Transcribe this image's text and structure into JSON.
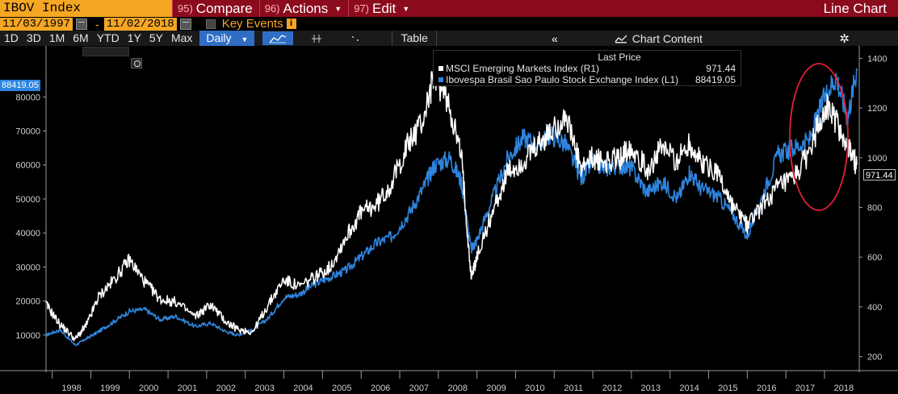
{
  "topbar": {
    "ticker": "IBOV Index",
    "commands": [
      {
        "num": "95)",
        "label": "Compare"
      },
      {
        "num": "96)",
        "label": "Actions"
      },
      {
        "num": "97)",
        "label": "Edit"
      }
    ],
    "chart_title": "Line Chart"
  },
  "datebar": {
    "start_date": "11/03/1997",
    "end_date": "11/02/2018",
    "separator": "-",
    "key_events_label": "Key Events",
    "info_glyph": "i"
  },
  "toolbar": {
    "ranges": [
      "1D",
      "3D",
      "1M",
      "6M",
      "YTD",
      "1Y",
      "5Y",
      "Max"
    ],
    "frequency": "Daily",
    "table_label": "Table",
    "collapse_glyph": "«",
    "chart_content_label": "Chart Content",
    "gear_glyph": "✲"
  },
  "legend": {
    "header": "Last Price",
    "items": [
      {
        "name": "MSCI Emerging Markets Index  (R1)",
        "value": "971.44",
        "color": "#ffffff"
      },
      {
        "name": "Ibovespa Brasil Sao Paulo Stock Exchange Index  (L1)",
        "value": "88419.05",
        "color": "#2e85df"
      }
    ]
  },
  "last_value_tags": {
    "left": "88419.05",
    "right": "971.44"
  },
  "icons": [
    "calendar-icon",
    "info-icon",
    "line-chart-icon",
    "crosshair-icon",
    "collapse-icon",
    "chart-content-icon",
    "gear-icon"
  ],
  "colors": {
    "topbar": "#8b0b1d",
    "accent_orange": "#f5a623",
    "series_blue": "#2e85df",
    "series_white": "#ffffff",
    "highlight_ellipse": "#e0203a"
  },
  "chart_data": {
    "type": "line",
    "x_ticks": [
      "1998",
      "1999",
      "2000",
      "2001",
      "2002",
      "2003",
      "2004",
      "2005",
      "2006",
      "2007",
      "2008",
      "2009",
      "2010",
      "2011",
      "2012",
      "2013",
      "2014",
      "2015",
      "2016",
      "2017",
      "2018"
    ],
    "left_axis": {
      "ticks": [
        10000,
        20000,
        30000,
        40000,
        50000,
        60000,
        70000,
        80000
      ],
      "ylim": [
        0,
        95000
      ]
    },
    "right_axis": {
      "ticks": [
        200,
        400,
        600,
        800,
        1000,
        1200,
        1400
      ],
      "ylim": [
        150,
        1450
      ]
    },
    "series": [
      {
        "name": "Ibovespa Brasil Sao Paulo Stock Exchange Index (L1)",
        "axis": "left",
        "x": [
          1997.84,
          1998.2,
          1998.6,
          1998.9,
          1999.2,
          1999.6,
          2000.0,
          2000.4,
          2000.8,
          2001.2,
          2001.7,
          2002.1,
          2002.5,
          2002.8,
          2003.2,
          2003.6,
          2004.0,
          2004.4,
          2004.8,
          2005.2,
          2005.6,
          2006.0,
          2006.4,
          2006.8,
          2007.2,
          2007.6,
          2007.9,
          2008.3,
          2008.6,
          2008.85,
          2009.0,
          2009.4,
          2009.8,
          2010.2,
          2010.6,
          2010.9,
          2011.3,
          2011.7,
          2012.0,
          2012.3,
          2012.7,
          2013.0,
          2013.4,
          2013.8,
          2014.2,
          2014.5,
          2014.8,
          2015.2,
          2015.6,
          2016.0,
          2016.4,
          2016.8,
          2017.2,
          2017.6,
          2018.0,
          2018.3,
          2018.6,
          2018.84
        ],
        "values": [
          10000,
          11500,
          7000,
          9000,
          11000,
          14000,
          17000,
          17500,
          14500,
          15500,
          12500,
          13500,
          11000,
          10000,
          11500,
          15000,
          21000,
          22000,
          25000,
          27000,
          29000,
          33000,
          37000,
          39000,
          45000,
          53000,
          60000,
          62000,
          55000,
          35000,
          38000,
          50000,
          62000,
          68000,
          66000,
          69000,
          66000,
          56000,
          61000,
          59000,
          60000,
          59000,
          52000,
          55000,
          50000,
          58000,
          53000,
          51000,
          46000,
          39000,
          51000,
          63000,
          65000,
          67000,
          80000,
          86000,
          74000,
          88419
        ]
      },
      {
        "name": "MSCI Emerging Markets Index (R1)",
        "axis": "right",
        "x": [
          1997.84,
          1998.2,
          1998.6,
          1998.9,
          1999.2,
          1999.6,
          2000.0,
          2000.4,
          2000.8,
          2001.2,
          2001.7,
          2002.1,
          2002.5,
          2002.8,
          2003.2,
          2003.6,
          2004.0,
          2004.4,
          2004.8,
          2005.2,
          2005.6,
          2006.0,
          2006.4,
          2006.8,
          2007.2,
          2007.6,
          2007.9,
          2008.3,
          2008.6,
          2008.85,
          2009.0,
          2009.4,
          2009.8,
          2010.2,
          2010.6,
          2010.9,
          2011.3,
          2011.7,
          2012.0,
          2012.3,
          2012.7,
          2013.0,
          2013.4,
          2013.8,
          2014.2,
          2014.5,
          2014.8,
          2015.2,
          2015.6,
          2016.0,
          2016.4,
          2016.8,
          2017.2,
          2017.6,
          2018.0,
          2018.3,
          2018.6,
          2018.84
        ],
        "values": [
          410,
          330,
          270,
          330,
          440,
          510,
          590,
          500,
          430,
          420,
          360,
          410,
          340,
          310,
          300,
          410,
          510,
          480,
          520,
          560,
          680,
          780,
          810,
          900,
          1050,
          1150,
          1340,
          1200,
          1000,
          520,
          600,
          780,
          940,
          980,
          1050,
          1100,
          1170,
          950,
          1000,
          980,
          1000,
          1050,
          950,
          1040,
          990,
          1060,
          980,
          950,
          810,
          730,
          810,
          880,
          910,
          1020,
          1210,
          1150,
          1040,
          971.44
        ]
      }
    ]
  }
}
